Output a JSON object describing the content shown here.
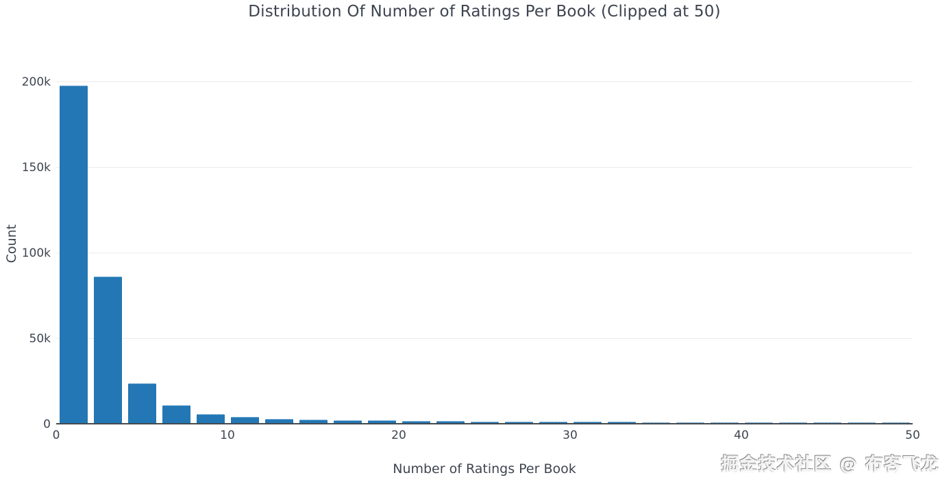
{
  "page": {
    "background_color": "#ffffff"
  },
  "watermark": {
    "text": "掘金技术社区 @ 布客飞龙"
  },
  "chart_data": {
    "type": "bar",
    "subtype": "histogram",
    "title": "Distribution Of Number of Ratings Per Book (Clipped at 50)",
    "xlabel": "Number of Ratings Per Book",
    "ylabel": "Count",
    "xlim": [
      0,
      50
    ],
    "ylim": [
      0,
      210000
    ],
    "bin_width": 2,
    "bar_fill_ratio": 0.82,
    "grid_on": true,
    "legend": null,
    "bar_color": "#2377b4",
    "grid_color": "#ebebeb",
    "axis_line_color": "#444a51",
    "text_color": "#3e4450",
    "x_ticks": [
      {
        "value": 0,
        "label": "0"
      },
      {
        "value": 10,
        "label": "10"
      },
      {
        "value": 20,
        "label": "20"
      },
      {
        "value": 30,
        "label": "30"
      },
      {
        "value": 40,
        "label": "40"
      },
      {
        "value": 50,
        "label": "50"
      }
    ],
    "y_ticks": [
      {
        "value": 0,
        "label": "0"
      },
      {
        "value": 50000,
        "label": "50k"
      },
      {
        "value": 100000,
        "label": "100k"
      },
      {
        "value": 150000,
        "label": "150k"
      },
      {
        "value": 200000,
        "label": "200k"
      }
    ],
    "bin_centers": [
      1,
      3,
      5,
      7,
      9,
      11,
      13,
      15,
      17,
      19,
      21,
      23,
      25,
      27,
      29,
      31,
      33,
      35,
      37,
      39,
      41,
      43,
      45,
      47,
      49
    ],
    "values": [
      197000,
      85500,
      23200,
      10400,
      5300,
      3700,
      2500,
      2000,
      1600,
      1400,
      1200,
      1050,
      900,
      800,
      720,
      650,
      600,
      560,
      520,
      490,
      460,
      440,
      420,
      400,
      500
    ]
  }
}
